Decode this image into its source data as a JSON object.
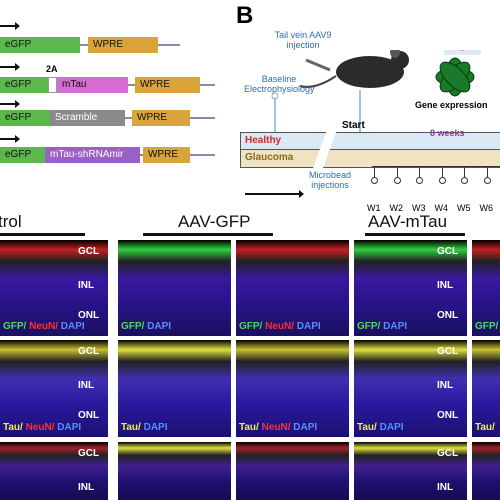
{
  "panel_a": {
    "constructs": [
      {
        "segments": [
          "eGFP",
          "WPRE"
        ]
      },
      {
        "tag": "2A",
        "segments": [
          "eGFP",
          "mTau",
          "WPRE"
        ]
      },
      {
        "segments": [
          "eGFP",
          "Scramble",
          "WPRE"
        ]
      },
      {
        "segments": [
          "eGFP",
          "mTau-shRNAmir",
          "WPRE"
        ]
      }
    ]
  },
  "panel_b": {
    "label": "B",
    "injection": "Tail vein AAV9 injection",
    "baseline": "Baseline Electrophysiology",
    "expression": "Gene expression",
    "healthy": "Healthy",
    "glaucoma": "Glaucoma",
    "start": "Start",
    "duration": "8 weeks",
    "microbead": "Microbead injections",
    "weeks": [
      "W1",
      "W2",
      "W3",
      "W4",
      "W5",
      "W6"
    ]
  },
  "panel_c": {
    "headers": [
      "trol",
      "AAV-GFP",
      "AAV-mTau"
    ],
    "rows": [
      {
        "layers": [
          "GCL",
          "INL",
          "ONL"
        ],
        "stains": [
          [
            {
              "text": "GFP/",
              "color": "#46e046"
            },
            {
              "text": " NeuN/",
              "color": "#ff3030"
            },
            {
              "text": " DAPI",
              "color": "#5a8cff"
            }
          ],
          [
            {
              "text": "GFP/",
              "color": "#46e046"
            },
            {
              "text": " DAPI",
              "color": "#5a8cff"
            }
          ],
          [
            {
              "text": "GFP/",
              "color": "#46e046"
            },
            {
              "text": " NeuN/",
              "color": "#ff3030"
            },
            {
              "text": " DAPI",
              "color": "#5a8cff"
            }
          ],
          [
            {
              "text": "GFP/",
              "color": "#46e046"
            },
            {
              "text": " DAPI",
              "color": "#5a8cff"
            }
          ],
          [
            {
              "text": "GFP/",
              "color": "#46e046"
            }
          ]
        ]
      },
      {
        "layers": [
          "GCL",
          "INL",
          "ONL"
        ],
        "stains": [
          [
            {
              "text": "Tau/",
              "color": "#f0f040"
            },
            {
              "text": " NeuN/",
              "color": "#ff3030"
            },
            {
              "text": " DAPI",
              "color": "#5a8cff"
            }
          ],
          [
            {
              "text": "Tau/",
              "color": "#f0f040"
            },
            {
              "text": " DAPI",
              "color": "#5a8cff"
            }
          ],
          [
            {
              "text": "Tau/",
              "color": "#f0f040"
            },
            {
              "text": " NeuN/",
              "color": "#ff3030"
            },
            {
              "text": " DAPI",
              "color": "#5a8cff"
            }
          ],
          [
            {
              "text": "Tau/",
              "color": "#f0f040"
            },
            {
              "text": " DAPI",
              "color": "#5a8cff"
            }
          ],
          [
            {
              "text": "Tau/",
              "color": "#f0f040"
            }
          ]
        ]
      },
      {
        "layers": [
          "GCL",
          "INL"
        ],
        "stains": []
      }
    ]
  }
}
